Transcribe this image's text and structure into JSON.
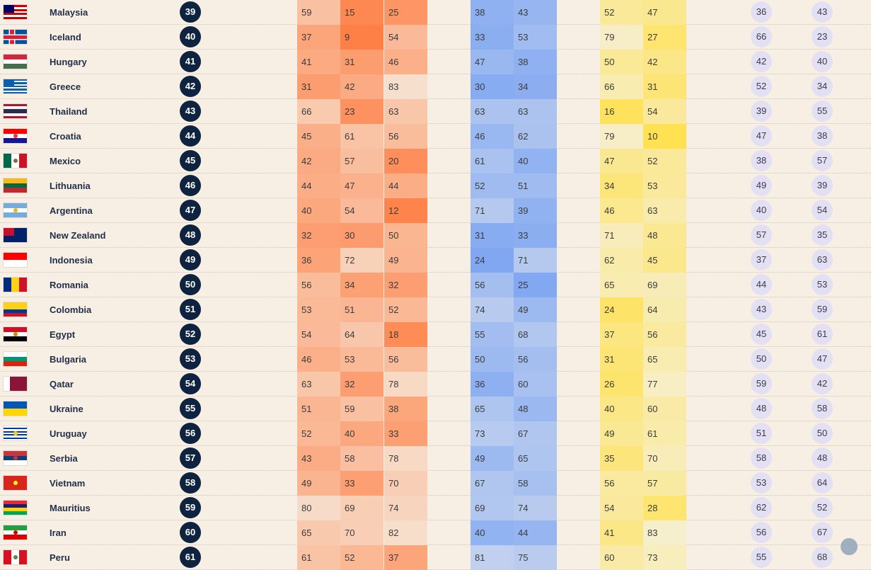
{
  "rows": [
    {
      "country": "Malaysia",
      "rank": "39",
      "flag": "malaysia-flag-icon",
      "orange": [
        "59",
        "15",
        "25"
      ],
      "blue": [
        "38",
        "43"
      ],
      "yellow": [
        "52",
        "47"
      ],
      "purple": [
        "36",
        "43"
      ]
    },
    {
      "country": "Iceland",
      "rank": "40",
      "flag": "iceland-flag-icon",
      "orange": [
        "37",
        "9",
        "54"
      ],
      "blue": [
        "33",
        "53"
      ],
      "yellow": [
        "79",
        "27"
      ],
      "purple": [
        "66",
        "23"
      ]
    },
    {
      "country": "Hungary",
      "rank": "41",
      "flag": "hungary-flag-icon",
      "orange": [
        "41",
        "31",
        "46"
      ],
      "blue": [
        "47",
        "38"
      ],
      "yellow": [
        "50",
        "42"
      ],
      "purple": [
        "42",
        "40"
      ]
    },
    {
      "country": "Greece",
      "rank": "42",
      "flag": "greece-flag-icon",
      "orange": [
        "31",
        "42",
        "83"
      ],
      "blue": [
        "30",
        "34"
      ],
      "yellow": [
        "66",
        "31"
      ],
      "purple": [
        "52",
        "34"
      ]
    },
    {
      "country": "Thailand",
      "rank": "43",
      "flag": "thailand-flag-icon",
      "orange": [
        "66",
        "23",
        "63"
      ],
      "blue": [
        "63",
        "63"
      ],
      "yellow": [
        "16",
        "54"
      ],
      "purple": [
        "39",
        "55"
      ]
    },
    {
      "country": "Croatia",
      "rank": "44",
      "flag": "croatia-flag-icon",
      "orange": [
        "45",
        "61",
        "56"
      ],
      "blue": [
        "46",
        "62"
      ],
      "yellow": [
        "79",
        "10"
      ],
      "purple": [
        "47",
        "38"
      ]
    },
    {
      "country": "Mexico",
      "rank": "45",
      "flag": "mexico-flag-icon",
      "orange": [
        "42",
        "57",
        "20"
      ],
      "blue": [
        "61",
        "40"
      ],
      "yellow": [
        "47",
        "52"
      ],
      "purple": [
        "38",
        "57"
      ]
    },
    {
      "country": "Lithuania",
      "rank": "46",
      "flag": "lithuania-flag-icon",
      "orange": [
        "44",
        "47",
        "44"
      ],
      "blue": [
        "52",
        "51"
      ],
      "yellow": [
        "34",
        "53"
      ],
      "purple": [
        "49",
        "39"
      ]
    },
    {
      "country": "Argentina",
      "rank": "47",
      "flag": "argentina-flag-icon",
      "orange": [
        "40",
        "54",
        "12"
      ],
      "blue": [
        "71",
        "39"
      ],
      "yellow": [
        "46",
        "63"
      ],
      "purple": [
        "40",
        "54"
      ]
    },
    {
      "country": "New Zealand",
      "rank": "48",
      "flag": "new-zealand-flag-icon",
      "orange": [
        "32",
        "30",
        "50"
      ],
      "blue": [
        "31",
        "33"
      ],
      "yellow": [
        "71",
        "48"
      ],
      "purple": [
        "57",
        "35"
      ]
    },
    {
      "country": "Indonesia",
      "rank": "49",
      "flag": "indonesia-flag-icon",
      "orange": [
        "36",
        "72",
        "49"
      ],
      "blue": [
        "24",
        "71"
      ],
      "yellow": [
        "62",
        "45"
      ],
      "purple": [
        "37",
        "63"
      ]
    },
    {
      "country": "Romania",
      "rank": "50",
      "flag": "romania-flag-icon",
      "orange": [
        "56",
        "34",
        "32"
      ],
      "blue": [
        "56",
        "25"
      ],
      "yellow": [
        "65",
        "69"
      ],
      "purple": [
        "44",
        "53"
      ]
    },
    {
      "country": "Colombia",
      "rank": "51",
      "flag": "colombia-flag-icon",
      "orange": [
        "53",
        "51",
        "52"
      ],
      "blue": [
        "74",
        "49"
      ],
      "yellow": [
        "24",
        "64"
      ],
      "purple": [
        "43",
        "59"
      ]
    },
    {
      "country": "Egypt",
      "rank": "52",
      "flag": "egypt-flag-icon",
      "orange": [
        "54",
        "64",
        "18"
      ],
      "blue": [
        "55",
        "68"
      ],
      "yellow": [
        "37",
        "56"
      ],
      "purple": [
        "45",
        "61"
      ]
    },
    {
      "country": "Bulgaria",
      "rank": "53",
      "flag": "bulgaria-flag-icon",
      "orange": [
        "46",
        "53",
        "56"
      ],
      "blue": [
        "50",
        "56"
      ],
      "yellow": [
        "31",
        "65"
      ],
      "purple": [
        "50",
        "47"
      ]
    },
    {
      "country": "Qatar",
      "rank": "54",
      "flag": "qatar-flag-icon",
      "orange": [
        "63",
        "32",
        "78"
      ],
      "blue": [
        "36",
        "60"
      ],
      "yellow": [
        "26",
        "77"
      ],
      "purple": [
        "59",
        "42"
      ]
    },
    {
      "country": "Ukraine",
      "rank": "55",
      "flag": "ukraine-flag-icon",
      "orange": [
        "51",
        "59",
        "38"
      ],
      "blue": [
        "65",
        "48"
      ],
      "yellow": [
        "40",
        "60"
      ],
      "purple": [
        "48",
        "58"
      ]
    },
    {
      "country": "Uruguay",
      "rank": "56",
      "flag": "uruguay-flag-icon",
      "orange": [
        "52",
        "40",
        "33"
      ],
      "blue": [
        "73",
        "67"
      ],
      "yellow": [
        "49",
        "61"
      ],
      "purple": [
        "51",
        "50"
      ]
    },
    {
      "country": "Serbia",
      "rank": "57",
      "flag": "serbia-flag-icon",
      "orange": [
        "43",
        "58",
        "78"
      ],
      "blue": [
        "49",
        "65"
      ],
      "yellow": [
        "35",
        "70"
      ],
      "purple": [
        "58",
        "48"
      ]
    },
    {
      "country": "Vietnam",
      "rank": "58",
      "flag": "vietnam-flag-icon",
      "orange": [
        "49",
        "33",
        "70"
      ],
      "blue": [
        "67",
        "58"
      ],
      "yellow": [
        "56",
        "57"
      ],
      "purple": [
        "53",
        "64"
      ]
    },
    {
      "country": "Mauritius",
      "rank": "59",
      "flag": "mauritius-flag-icon",
      "orange": [
        "80",
        "69",
        "74"
      ],
      "blue": [
        "69",
        "74"
      ],
      "yellow": [
        "54",
        "28"
      ],
      "purple": [
        "62",
        "52"
      ]
    },
    {
      "country": "Iran",
      "rank": "60",
      "flag": "iran-flag-icon",
      "orange": [
        "65",
        "70",
        "82"
      ],
      "blue": [
        "40",
        "44"
      ],
      "yellow": [
        "41",
        "83"
      ],
      "purple": [
        "56",
        "67"
      ]
    },
    {
      "country": "Peru",
      "rank": "61",
      "flag": "peru-flag-icon",
      "orange": [
        "61",
        "52",
        "37"
      ],
      "blue": [
        "81",
        "75"
      ],
      "yellow": [
        "60",
        "73"
      ],
      "purple": [
        "55",
        "68"
      ]
    }
  ],
  "colors": {
    "background": "#f8efe4",
    "rank_circle": "#0e2340",
    "orange_strong": "#ff7f45",
    "orange_light": "#f6e1cf",
    "blue_strong": "#6f9cf3",
    "blue_light": "#c3d2ee",
    "yellow_strong": "#ffe14e",
    "yellow_light": "#f6efd0",
    "purple_pill": "#e4e0f3"
  },
  "flags": {
    "malaysia-flag-icon": {
      "type": "h",
      "colors": [
        "#cc0001",
        "#ffffff",
        "#cc0001",
        "#ffffff",
        "#cc0001",
        "#ffffff",
        "#cc0001"
      ],
      "canton": "#010066"
    },
    "iceland-flag-icon": {
      "type": "cross",
      "bg": "#02529c",
      "cross": "#dc1e35",
      "border": "#ffffff"
    },
    "hungary-flag-icon": {
      "type": "h",
      "colors": [
        "#cd2a3e",
        "#ffffff",
        "#436f4d"
      ]
    },
    "greece-flag-icon": {
      "type": "h",
      "colors": [
        "#0d5eaf",
        "#ffffff",
        "#0d5eaf",
        "#ffffff",
        "#0d5eaf",
        "#ffffff",
        "#0d5eaf",
        "#ffffff",
        "#0d5eaf"
      ],
      "canton": "#0d5eaf"
    },
    "thailand-flag-icon": {
      "type": "hw",
      "colors": [
        "#a51931",
        "#f4f5f8",
        "#2d2a4a",
        "#2d2a4a",
        "#f4f5f8",
        "#a51931"
      ]
    },
    "croatia-flag-icon": {
      "type": "h",
      "colors": [
        "#ff0000",
        "#ffffff",
        "#171796"
      ],
      "emblem": "#e33"
    },
    "mexico-flag-icon": {
      "type": "v",
      "colors": [
        "#006847",
        "#ffffff",
        "#ce1126"
      ],
      "emblem": "#8a6a3b"
    },
    "lithuania-flag-icon": {
      "type": "h",
      "colors": [
        "#fdb913",
        "#006a44",
        "#c1272d"
      ]
    },
    "argentina-flag-icon": {
      "type": "h",
      "colors": [
        "#74acdf",
        "#ffffff",
        "#74acdf"
      ],
      "emblem": "#f6b40e"
    },
    "new-zealand-flag-icon": {
      "type": "solid",
      "colors": [
        "#012169"
      ],
      "canton": "#c8102e"
    },
    "indonesia-flag-icon": {
      "type": "h",
      "colors": [
        "#ff0000",
        "#ffffff"
      ]
    },
    "romania-flag-icon": {
      "type": "v",
      "colors": [
        "#002b7f",
        "#fcd116",
        "#ce1126"
      ]
    },
    "colombia-flag-icon": {
      "type": "hw",
      "colors": [
        "#fcd116",
        "#fcd116",
        "#003893",
        "#ce1126"
      ]
    },
    "egypt-flag-icon": {
      "type": "h",
      "colors": [
        "#ce1126",
        "#ffffff",
        "#000000"
      ],
      "emblem": "#c09300"
    },
    "bulgaria-flag-icon": {
      "type": "h",
      "colors": [
        "#ffffff",
        "#00966e",
        "#d62612"
      ]
    },
    "qatar-flag-icon": {
      "type": "v2",
      "colors": [
        "#ffffff",
        "#8a1538"
      ]
    },
    "ukraine-flag-icon": {
      "type": "h",
      "colors": [
        "#0057b7",
        "#ffd700"
      ]
    },
    "uruguay-flag-icon": {
      "type": "h",
      "colors": [
        "#ffffff",
        "#0038a8",
        "#ffffff",
        "#0038a8",
        "#ffffff",
        "#0038a8",
        "#ffffff",
        "#0038a8",
        "#ffffff"
      ],
      "emblem": "#fcd116"
    },
    "serbia-flag-icon": {
      "type": "h",
      "colors": [
        "#c6363c",
        "#0c4076",
        "#ffffff"
      ],
      "emblem": "#c6363c"
    },
    "vietnam-flag-icon": {
      "type": "solid",
      "colors": [
        "#da251d"
      ],
      "emblem": "#ffff00"
    },
    "mauritius-flag-icon": {
      "type": "h",
      "colors": [
        "#ea2839",
        "#1a206d",
        "#ffd500",
        "#00a551"
      ]
    },
    "iran-flag-icon": {
      "type": "h",
      "colors": [
        "#239f40",
        "#ffffff",
        "#da0000"
      ],
      "emblem": "#da0000"
    },
    "peru-flag-icon": {
      "type": "v",
      "colors": [
        "#d91023",
        "#ffffff",
        "#d91023"
      ],
      "emblem": "#5a8a3a"
    }
  },
  "watermark": {
    "label": "watermark-logo"
  }
}
